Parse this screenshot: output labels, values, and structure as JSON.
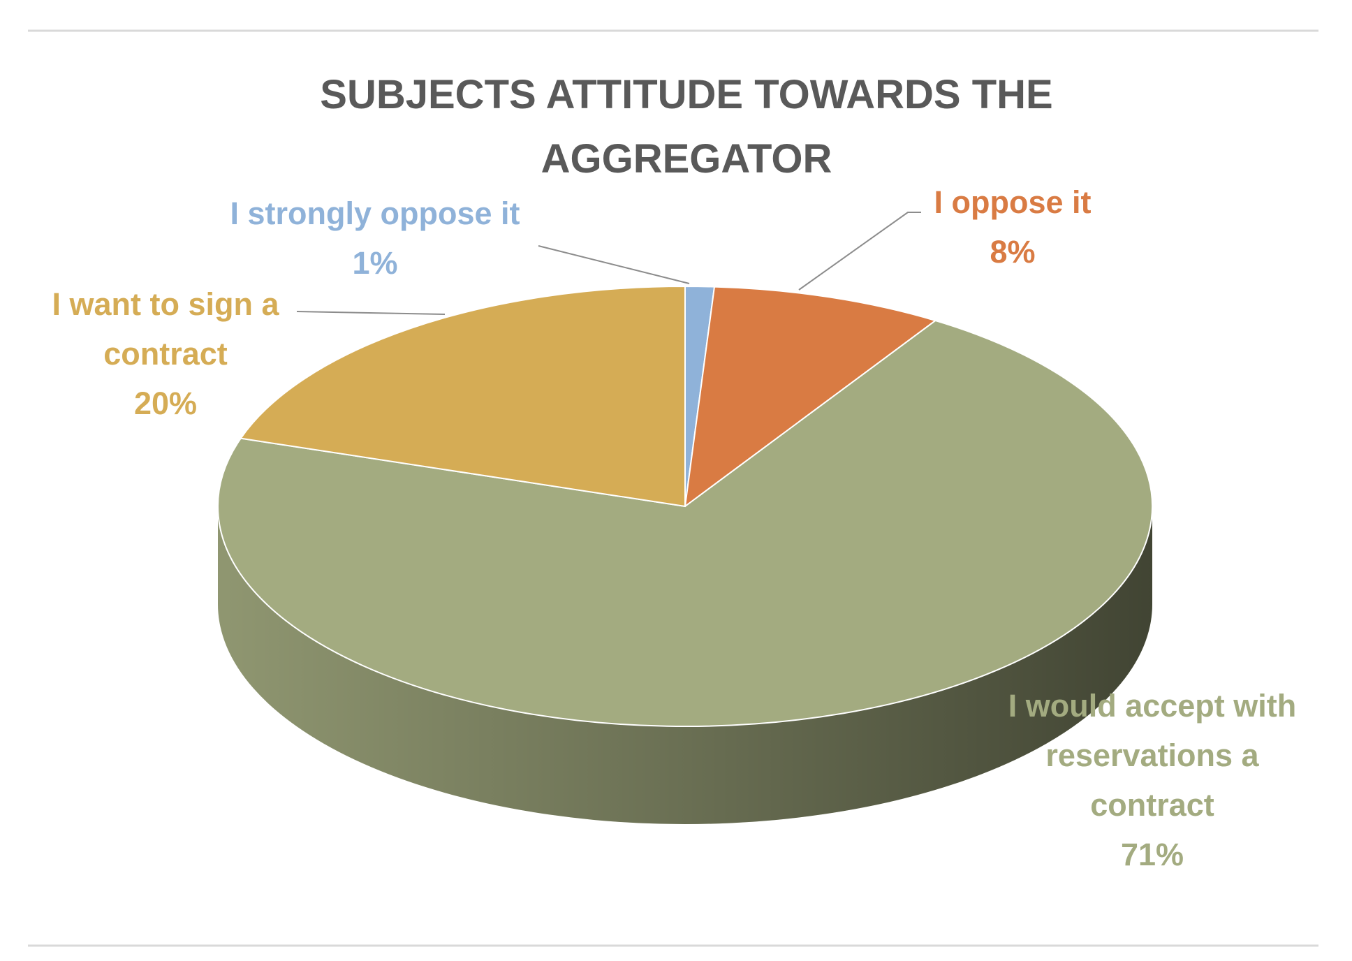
{
  "chart_data": {
    "type": "pie",
    "title": "SUBJECTS ATTITUDE TOWARDS THE AGGREGATOR",
    "categories": [
      "I strongly oppose it",
      "I oppose it",
      "I would accept with reservations a contract",
      "I want to sign a contract"
    ],
    "values": [
      1,
      8,
      71,
      20
    ],
    "value_labels": [
      "1%",
      "8%",
      "71%",
      "20%"
    ],
    "colors": [
      "#8fb2d9",
      "#d97b43",
      "#a3ab80",
      "#d5ac55"
    ]
  }
}
